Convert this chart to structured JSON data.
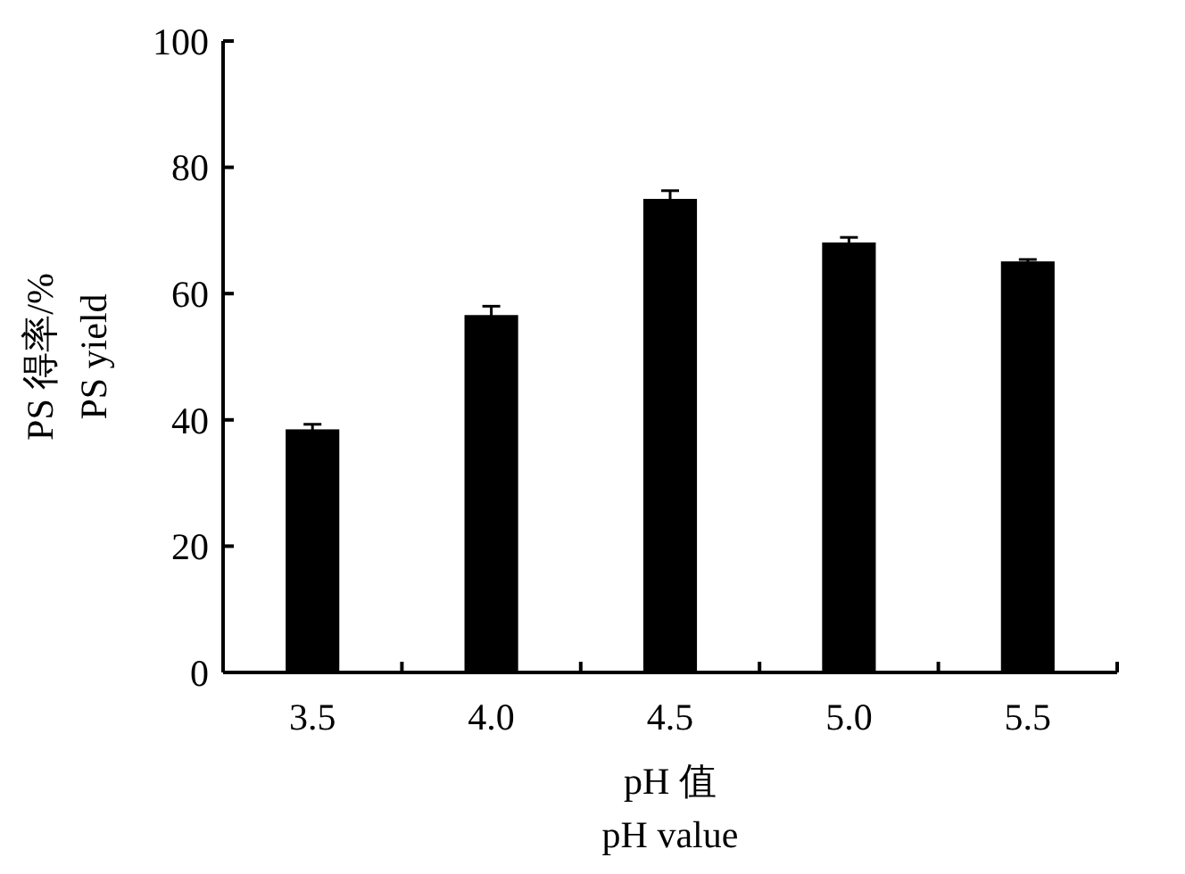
{
  "chart_data": {
    "type": "bar",
    "xlabel": "pH 值\npH value",
    "ylabel": "PS 得率/%\nPS yield",
    "categories": [
      "3.5",
      "4.0",
      "4.5",
      "5.0",
      "5.5"
    ],
    "values": [
      38.5,
      56.6,
      75.0,
      68.1,
      65.1
    ],
    "errors": [
      0.8,
      1.4,
      1.3,
      0.8,
      0.3
    ],
    "color": "#000000",
    "ylim": [
      0,
      100
    ],
    "yticks": [
      0,
      20,
      40,
      60,
      80,
      100
    ],
    "grid": false
  }
}
